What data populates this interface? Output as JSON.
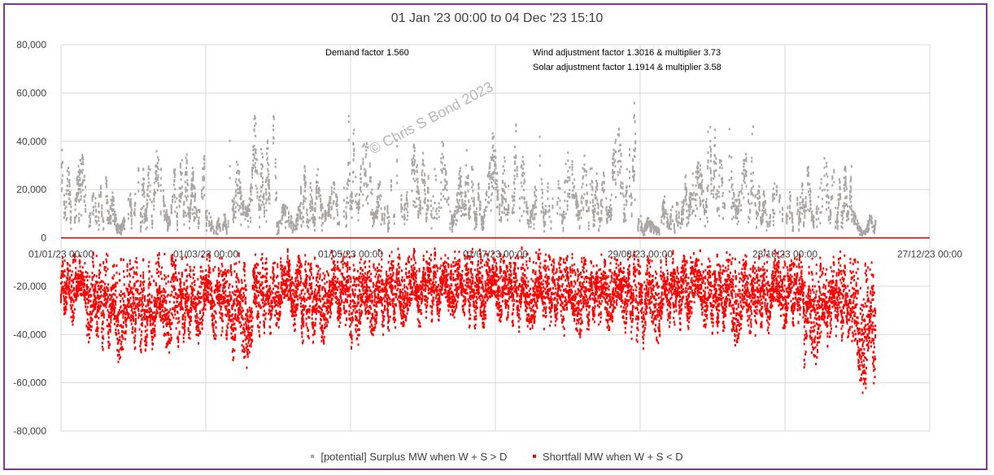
{
  "chart_data": {
    "type": "scatter",
    "title": "01 Jan '23 00:00 to 04 Dec '23 15:10",
    "ylim": [
      -80000,
      80000
    ],
    "y_ticks": [
      80000,
      60000,
      40000,
      20000,
      0,
      -20000,
      -40000,
      -60000,
      -80000
    ],
    "y_tick_labels": [
      "80,000",
      "60,000",
      "40,000",
      "20,000",
      "0",
      "-20,000",
      "-40,000",
      "-60,000",
      "-80,000"
    ],
    "x_tick_labels": [
      "01/01/23 00:00",
      "01/03/23 00:00",
      "01/05/23 00:00",
      "01/07/23 00:00",
      "29/08/23 00:00",
      "28/10/23 00:00",
      "27/12/23 00:00"
    ],
    "x_range_days": [
      0,
      360
    ],
    "data_end_day": 337.6,
    "grid": true,
    "legend_position": "bottom",
    "annotations": {
      "demand": "Demand factor 1.560",
      "wind": "Wind adjustment factor 1.3016 & multiplier 3.73",
      "solar": "Solar adjustment factor 1.1914 & multiplier 3.58",
      "watermark": "© Chris S Bond  2023"
    },
    "series": [
      {
        "name": "[potential] Surplus MW when W + S > D",
        "color": "#aaa6a4",
        "envelope_max": [
          38000,
          32000,
          20000,
          42000,
          35000,
          42000,
          12000,
          43000,
          55000,
          18000,
          35000,
          33000,
          53000,
          30000,
          47000,
          42000,
          38000,
          34000,
          48000,
          43000,
          30000,
          47000,
          37000,
          57000,
          12000,
          20000,
          44000,
          57000,
          50000,
          26000,
          28000,
          37000,
          37000,
          12000
        ]
      },
      {
        "name": "Shortfall MW when W + S < D",
        "color": "#ff0000",
        "envelope_min": [
          -37000,
          -48000,
          -53000,
          -50000,
          -50000,
          -46000,
          -45000,
          -55000,
          -43000,
          -40000,
          -48000,
          -40000,
          -48000,
          -42000,
          -40000,
          -37000,
          -35000,
          -40000,
          -38000,
          -40000,
          -40000,
          -44000,
          -40000,
          -42000,
          -46000,
          -40000,
          -40000,
          -42000,
          -45000,
          -42000,
          -40000,
          -57000,
          -45000,
          -67000
        ]
      }
    ]
  }
}
